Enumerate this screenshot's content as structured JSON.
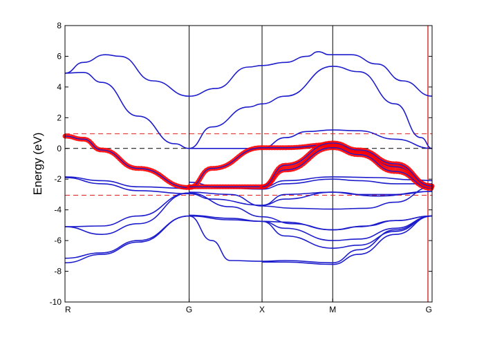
{
  "chart_data": {
    "type": "line",
    "title": "",
    "xlabel": "",
    "ylabel": "Energy (eV)",
    "ylim": [
      -10,
      8
    ],
    "yticks": [
      8,
      6,
      4,
      2,
      0,
      -2,
      -4,
      -6,
      -8,
      -10
    ],
    "xlim": [
      0,
      1
    ],
    "xticks": [
      {
        "label": "R",
        "x": 0.0
      },
      {
        "label": "G",
        "x": 0.3382
      },
      {
        "label": "X",
        "x": 0.5368
      },
      {
        "label": "M",
        "x": 0.7293
      },
      {
        "label": "G",
        "x": 1.0
      }
    ],
    "grid": false,
    "reference_lines": [
      {
        "y": 0,
        "color": "#000000",
        "style": "dashed"
      },
      {
        "y": 0.95,
        "color": "#e02020",
        "style": "dashed"
      },
      {
        "y": -3.05,
        "color": "#e02020",
        "style": "dashed"
      }
    ],
    "colors": {
      "bands": "#1c1ccc",
      "highlight": "#ff0000",
      "vertical_lines": "#000000",
      "last_vertical": "#cc0000"
    },
    "series": [
      {
        "role": "band",
        "x": [
          0,
          0.05,
          0.11,
          0.15,
          0.24,
          0.3382,
          0.41,
          0.5,
          0.5368,
          0.6,
          0.66,
          0.69,
          0.72,
          0.7293,
          0.78,
          0.85,
          0.92,
          1.0
        ],
        "y": [
          4.9,
          5.6,
          6.1,
          6.0,
          4.4,
          3.4,
          3.9,
          5.3,
          5.4,
          5.6,
          6.0,
          6.3,
          6.1,
          6.1,
          6.1,
          5.5,
          4.4,
          3.4
        ]
      },
      {
        "role": "band",
        "x": [
          0,
          0.05,
          0.1,
          0.2,
          0.3,
          0.3382
        ],
        "y": [
          4.9,
          4.95,
          4.3,
          2.1,
          0.3,
          0.0
        ]
      },
      {
        "role": "band",
        "x": [
          0.3382,
          0.4,
          0.5,
          0.5368,
          0.6,
          0.7293,
          0.8,
          0.9,
          0.97,
          1.0
        ],
        "y": [
          0.0,
          1.4,
          2.7,
          2.9,
          3.4,
          5.35,
          5.0,
          2.9,
          0.7,
          0.0
        ]
      },
      {
        "role": "band",
        "x": [
          0.3382,
          0.4,
          0.5368,
          0.6,
          0.66,
          0.7293,
          0.8,
          0.9,
          1.0
        ],
        "y": [
          0.0,
          0.0,
          0.0,
          0.7,
          1.1,
          1.2,
          1.15,
          0.6,
          0.0
        ]
      },
      {
        "role": "band",
        "x": [
          0,
          0.1,
          0.2,
          0.3382
        ],
        "y": [
          -1.85,
          -2.1,
          -2.5,
          -2.6
        ]
      },
      {
        "role": "band",
        "x": [
          0,
          0.1,
          0.2,
          0.3382,
          0.4,
          0.5368,
          0.6,
          0.7293,
          0.85,
          1.0
        ],
        "y": [
          -1.9,
          -2.3,
          -2.75,
          -2.95,
          -3.3,
          -3.7,
          -3.3,
          -2.85,
          -3.1,
          -2.8
        ]
      },
      {
        "role": "band",
        "x": [
          0.3382,
          0.45,
          0.5368,
          0.62,
          0.7293,
          0.82,
          0.9,
          1.0
        ],
        "y": [
          -2.85,
          -3.0,
          -3.75,
          -3.9,
          -3.95,
          -3.9,
          -3.5,
          -2.5
        ]
      },
      {
        "role": "band",
        "x": [
          0.3382,
          0.42,
          0.5368,
          0.6,
          0.7293,
          0.8,
          0.9,
          1.0
        ],
        "y": [
          -2.2,
          -2.55,
          -2.65,
          -2.3,
          -2.0,
          -2.1,
          -2.3,
          -2.3
        ]
      },
      {
        "role": "band",
        "x": [
          0.5368,
          0.6,
          0.7293,
          0.85,
          0.95,
          1.0
        ],
        "y": [
          -2.55,
          -2.1,
          -1.85,
          -1.9,
          -2.05,
          -2.1
        ]
      },
      {
        "role": "band",
        "x": [
          0.5368,
          0.6,
          0.7293,
          0.8,
          0.9,
          1.0
        ],
        "y": [
          -3.7,
          -3.0,
          -2.85,
          -3.0,
          -3.0,
          -2.8
        ]
      },
      {
        "role": "band",
        "x": [
          0,
          0.1,
          0.2,
          0.3382
        ],
        "y": [
          -5.1,
          -5.6,
          -4.9,
          -2.9
        ]
      },
      {
        "role": "band",
        "x": [
          0,
          0.1,
          0.2,
          0.3382
        ],
        "y": [
          -5.1,
          -5.05,
          -4.4,
          -2.9
        ]
      },
      {
        "role": "band",
        "x": [
          0,
          0.1,
          0.2,
          0.3382
        ],
        "y": [
          -7.15,
          -6.8,
          -6.0,
          -4.4
        ]
      },
      {
        "role": "band",
        "x": [
          0,
          0.1,
          0.2,
          0.3382
        ],
        "y": [
          -7.45,
          -6.9,
          -6.1,
          -4.4
        ]
      },
      {
        "role": "band",
        "x": [
          0.3382,
          0.45,
          0.5368,
          0.62,
          0.7293,
          0.82,
          0.9,
          1.0
        ],
        "y": [
          -2.9,
          -3.8,
          -4.45,
          -4.9,
          -5.3,
          -5.05,
          -4.7,
          -4.4
        ]
      },
      {
        "role": "band",
        "x": [
          0.3382,
          0.45,
          0.5368,
          0.6,
          0.7293,
          0.8,
          0.9,
          1.0
        ],
        "y": [
          -4.4,
          -4.65,
          -4.75,
          -4.8,
          -5.3,
          -5.1,
          -4.7,
          -4.4
        ]
      },
      {
        "role": "band",
        "x": [
          0.3382,
          0.45,
          0.5368,
          0.6,
          0.7293,
          0.8,
          0.9,
          1.0
        ],
        "y": [
          -4.35,
          -4.55,
          -4.75,
          -5.2,
          -6.0,
          -5.9,
          -5.2,
          -4.4
        ]
      },
      {
        "role": "band",
        "x": [
          0.5368,
          0.6,
          0.7293,
          0.8,
          0.9,
          1.0
        ],
        "y": [
          -4.75,
          -5.7,
          -6.5,
          -6.3,
          -5.4,
          -4.4
        ]
      },
      {
        "role": "band",
        "x": [
          0.3382,
          0.4,
          0.45,
          0.5368,
          0.6,
          0.7293,
          0.8,
          0.9,
          1.0
        ],
        "y": [
          -4.4,
          -6.0,
          -7.3,
          -7.35,
          -7.3,
          -7.45,
          -6.6,
          -5.3,
          -4.4
        ]
      },
      {
        "role": "band",
        "x": [
          0.5368,
          0.6,
          0.7293,
          0.8,
          0.9,
          1.0
        ],
        "y": [
          -7.4,
          -7.4,
          -7.55,
          -6.9,
          -5.6,
          -4.4
        ]
      },
      {
        "role": "band",
        "x": [
          0,
          0.05,
          0.1,
          0.2,
          0.3382,
          0.4,
          0.5368
        ],
        "y": [
          0.8,
          0.6,
          -0.1,
          -1.3,
          -2.55,
          -1.3,
          0.0
        ]
      },
      {
        "role": "band",
        "x": [
          0.3382,
          0.4,
          0.5368
        ],
        "y": [
          -2.5,
          -2.5,
          -2.5
        ]
      },
      {
        "role": "band",
        "x": [
          0.5368,
          0.6,
          0.7293,
          0.8,
          0.9,
          1.0
        ],
        "y": [
          0.0,
          0.0,
          0.15,
          -0.2,
          -1.2,
          -2.5
        ]
      },
      {
        "role": "band",
        "x": [
          0.5368,
          0.6,
          0.7293,
          0.8,
          0.9,
          1.0
        ],
        "y": [
          -2.5,
          -1.4,
          0.1,
          -0.4,
          -1.5,
          -2.6
        ]
      },
      {
        "role": "highlight",
        "x": [
          0,
          0.05,
          0.1,
          0.2,
          0.3382,
          0.4,
          0.5368,
          0.6,
          0.7293,
          0.8,
          0.9,
          1.0
        ],
        "y": [
          0.8,
          0.6,
          -0.1,
          -1.3,
          -2.55,
          -1.3,
          0.05,
          0.05,
          0.25,
          -0.2,
          -1.2,
          -2.5
        ]
      },
      {
        "role": "highlight",
        "x": [
          0.3382,
          0.4,
          0.5368,
          0.6,
          0.7293,
          0.8,
          0.9,
          1.0
        ],
        "y": [
          -2.5,
          -2.5,
          -2.5,
          -1.4,
          0.05,
          -0.4,
          -1.5,
          -2.6
        ]
      },
      {
        "role": "highlight",
        "x": [
          0.5368,
          0.6,
          0.7293,
          0.8,
          0.9,
          1.0
        ],
        "y": [
          -2.5,
          -1.1,
          0.35,
          -0.1,
          -1.0,
          -2.45
        ]
      }
    ]
  }
}
